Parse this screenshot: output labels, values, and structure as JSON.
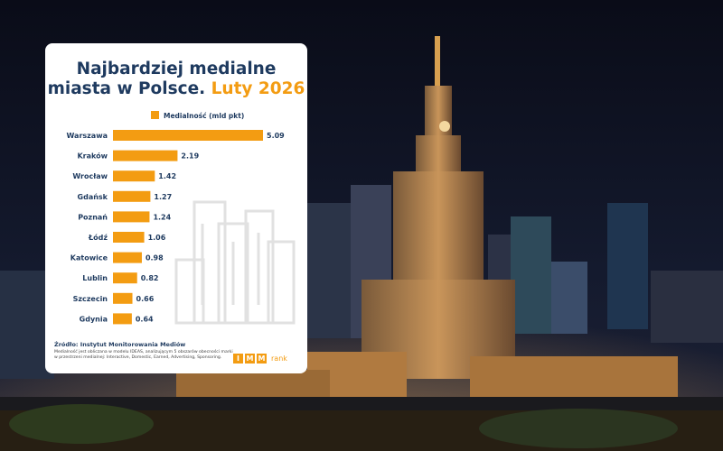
{
  "title": {
    "line1": "Najbardziej medialne",
    "line2": "miasta w Polsce.",
    "accent": "Luty 2026"
  },
  "source": "Źródło: Instytut Monitorowania Mediów",
  "note": "Medialność jest obliczana w modelu IDEAS, analizującym 5 obszarów obecności marki w przestrzeni medialnej: Interactive, Domestic, Earned, Advertising, Sponsoring.",
  "logo": {
    "letters": [
      "I",
      "M",
      "M"
    ],
    "rank": "rank"
  },
  "colors": {
    "bar": "#f39c12",
    "title": "#1e3a5f",
    "label": "#1e3a5f"
  },
  "chart_data": {
    "type": "bar",
    "orientation": "horizontal",
    "series": [
      {
        "name": "Medialność (mld pkt)"
      }
    ],
    "categories": [
      "Warszawa",
      "Kraków",
      "Wrocław",
      "Gdańsk",
      "Poznań",
      "Łódź",
      "Katowice",
      "Lublin",
      "Szczecin",
      "Gdynia"
    ],
    "values": [
      5.09,
      2.19,
      1.42,
      1.27,
      1.24,
      1.06,
      0.98,
      0.82,
      0.66,
      0.64
    ],
    "value_labels": [
      "5.09",
      "2.19",
      "1.42",
      "1.27",
      "1.24",
      "1.06",
      "0.98",
      "0.82",
      "0.66",
      "0.64"
    ],
    "xlim": [
      0,
      5.09
    ],
    "legend": "top",
    "grid": false
  }
}
